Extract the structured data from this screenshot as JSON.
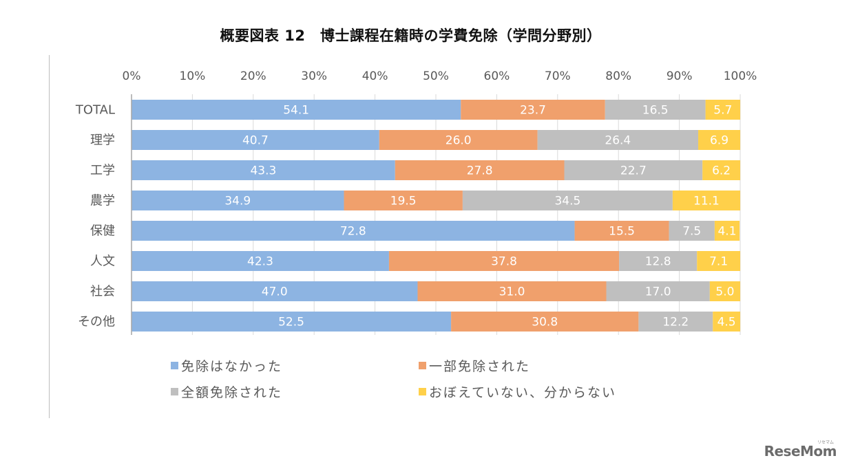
{
  "chart_data": {
    "type": "bar",
    "orientation": "horizontal",
    "stacked": "percent",
    "title": "概要図表 12　博士課程在籍時の学費免除（学問分野別）",
    "xlabel": "",
    "ylabel": "",
    "xlim": [
      0,
      100
    ],
    "x_ticks": [
      "0%",
      "10%",
      "20%",
      "30%",
      "40%",
      "50%",
      "60%",
      "70%",
      "80%",
      "90%",
      "100%"
    ],
    "x_axis_position": "top",
    "grid": true,
    "legend_position": "bottom",
    "categories": [
      "TOTAL",
      "理学",
      "工学",
      "農学",
      "保健",
      "人文",
      "社会",
      "その他"
    ],
    "series": [
      {
        "name": "免除はなかった",
        "color": "#8db4e2",
        "values": [
          54.1,
          40.7,
          43.3,
          34.9,
          72.8,
          42.3,
          47.0,
          52.5
        ]
      },
      {
        "name": "一部免除された",
        "color": "#f0a06c",
        "values": [
          23.7,
          26.0,
          27.8,
          19.5,
          15.5,
          37.8,
          31.0,
          30.8
        ]
      },
      {
        "name": "全額免除された",
        "color": "#bfbfbf",
        "values": [
          16.5,
          26.4,
          22.7,
          34.5,
          7.5,
          12.8,
          17.0,
          12.2
        ]
      },
      {
        "name": "おぼえていない、分からない",
        "color": "#ffd04a",
        "values": [
          5.7,
          6.9,
          6.2,
          11.1,
          4.1,
          7.1,
          5.0,
          4.5
        ]
      }
    ],
    "data_labels": [
      [
        "54.1",
        "40.7",
        "43.3",
        "34.9",
        "72.8",
        "42.3",
        "47.0",
        "52.5"
      ],
      [
        "23.7",
        "26.0",
        "27.8",
        "19.5",
        "15.5",
        "37.8",
        "31.0",
        "30.8"
      ],
      [
        "16.5",
        "26.4",
        "22.7",
        "34.5",
        "7.5",
        "12.8",
        "17.0",
        "12.2"
      ],
      [
        "5.7",
        "6.9",
        "6.2",
        "11.1",
        "4.1",
        "7.1",
        "5.0",
        "4.5"
      ]
    ]
  },
  "legend": {
    "items": [
      {
        "label": "免除はなかった",
        "color": "#8db4e2"
      },
      {
        "label": "一部免除された",
        "color": "#f0a06c"
      },
      {
        "label": "全額免除された",
        "color": "#bfbfbf"
      },
      {
        "label": "おぼえていない、分からない",
        "color": "#ffd04a"
      }
    ]
  },
  "watermark": {
    "text": "ReseMom",
    "subtext": "リセマム"
  }
}
